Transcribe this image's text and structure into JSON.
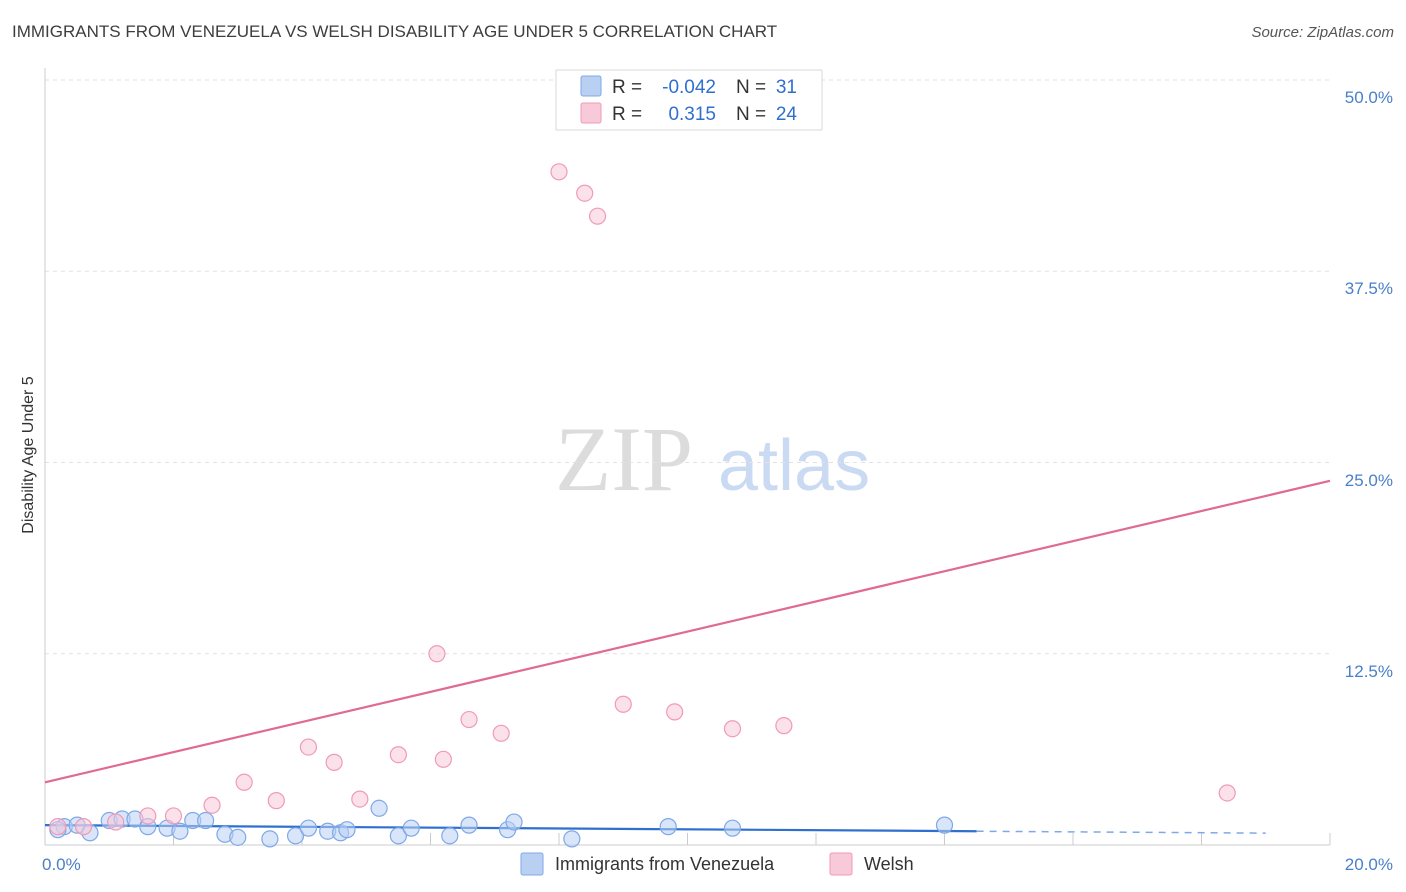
{
  "title": "IMMIGRANTS FROM VENEZUELA VS WELSH DISABILITY AGE UNDER 5 CORRELATION CHART",
  "source": "Source: ZipAtlas.com",
  "watermark": {
    "zip": "ZIP",
    "atlas": "atlas"
  },
  "chart_data": {
    "type": "scatter",
    "title": "IMMIGRANTS FROM VENEZUELA VS WELSH DISABILITY AGE UNDER 5 CORRELATION CHART",
    "xlabel": "",
    "ylabel": "Disability Age Under 5",
    "xlim": [
      0,
      20
    ],
    "ylim": [
      0,
      50
    ],
    "x_tick_labels": [
      "0.0%",
      "20.0%"
    ],
    "y_ticks": [
      12.5,
      25.0,
      37.5,
      50.0
    ],
    "y_tick_labels": [
      "12.5%",
      "25.0%",
      "37.5%",
      "50.0%"
    ],
    "grid": true,
    "legend_position": "top-center",
    "series": [
      {
        "name": "Immigrants from Venezuela",
        "color": "#7fa8e8",
        "fill": "#b9d0f3",
        "line_color": "#2f6fcf",
        "R": "-0.042",
        "N": "31",
        "trend": {
          "x0": 0.0,
          "y0": 1.3,
          "x1": 14.5,
          "y1": 0.9,
          "dash_to": 19.0
        },
        "points": [
          [
            0.3,
            1.2
          ],
          [
            0.5,
            1.3
          ],
          [
            0.7,
            0.8
          ],
          [
            1.0,
            1.6
          ],
          [
            1.2,
            1.7
          ],
          [
            1.4,
            1.7
          ],
          [
            1.6,
            1.2
          ],
          [
            1.9,
            1.1
          ],
          [
            2.1,
            0.9
          ],
          [
            2.3,
            1.6
          ],
          [
            2.5,
            1.6
          ],
          [
            2.8,
            0.7
          ],
          [
            3.0,
            0.5
          ],
          [
            3.5,
            0.4
          ],
          [
            3.9,
            0.6
          ],
          [
            4.1,
            1.1
          ],
          [
            4.4,
            0.9
          ],
          [
            4.6,
            0.8
          ],
          [
            4.7,
            1.0
          ],
          [
            5.2,
            2.4
          ],
          [
            5.5,
            0.6
          ],
          [
            5.7,
            1.1
          ],
          [
            6.3,
            0.6
          ],
          [
            6.6,
            1.3
          ],
          [
            7.2,
            1.0
          ],
          [
            7.3,
            1.5
          ],
          [
            8.2,
            0.4
          ],
          [
            9.7,
            1.2
          ],
          [
            10.7,
            1.1
          ],
          [
            14.0,
            1.3
          ],
          [
            0.2,
            1.0
          ]
        ]
      },
      {
        "name": "Welsh",
        "color": "#f09ab8",
        "fill": "#f8c9d9",
        "line_color": "#e06a93",
        "R": "0.315",
        "N": "24",
        "trend": {
          "x0": 0.0,
          "y0": 4.1,
          "x1": 20.0,
          "y1": 23.8
        },
        "points": [
          [
            0.2,
            1.2
          ],
          [
            0.6,
            1.2
          ],
          [
            1.1,
            1.5
          ],
          [
            1.6,
            1.9
          ],
          [
            2.0,
            1.9
          ],
          [
            2.6,
            2.6
          ],
          [
            3.1,
            4.1
          ],
          [
            3.6,
            2.9
          ],
          [
            4.1,
            6.4
          ],
          [
            4.5,
            5.4
          ],
          [
            4.9,
            3.0
          ],
          [
            5.5,
            5.9
          ],
          [
            6.1,
            12.5
          ],
          [
            6.2,
            5.6
          ],
          [
            6.6,
            8.2
          ],
          [
            7.1,
            7.3
          ],
          [
            8.0,
            44.0
          ],
          [
            8.6,
            41.1
          ],
          [
            8.4,
            42.6
          ],
          [
            9.0,
            9.2
          ],
          [
            9.8,
            8.7
          ],
          [
            10.7,
            7.6
          ],
          [
            11.5,
            7.8
          ],
          [
            18.4,
            3.4
          ]
        ]
      }
    ]
  }
}
